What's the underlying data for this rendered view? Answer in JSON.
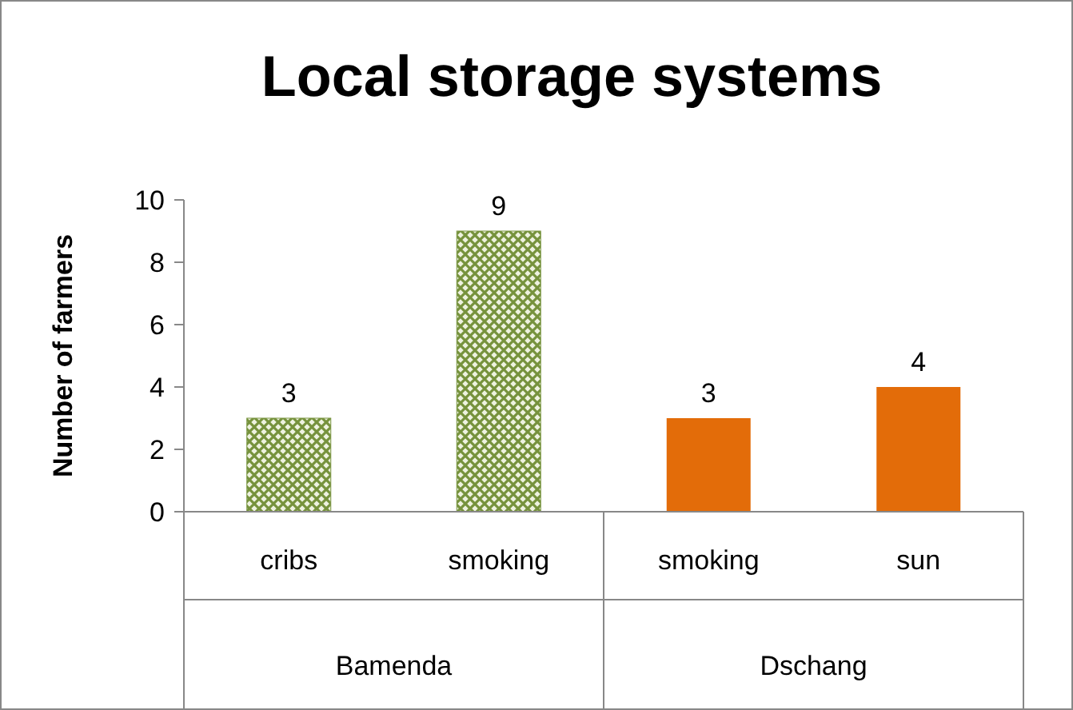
{
  "chart_data": {
    "type": "bar",
    "title": "Local storage systems",
    "ylabel": "Number of farmers",
    "categories": [
      "cribs",
      "smoking",
      "smoking",
      "sun"
    ],
    "values": [
      3,
      9,
      3,
      4
    ],
    "colors": [
      "#76923c",
      "#76923c",
      "#e36c09",
      "#e36c09"
    ],
    "annotations": [
      "Bamenda",
      "Dschang"
    ],
    "ylim": [
      0,
      10
    ],
    "yticks": [
      0,
      2,
      4,
      6,
      8,
      10
    ],
    "data_labels": true
  }
}
